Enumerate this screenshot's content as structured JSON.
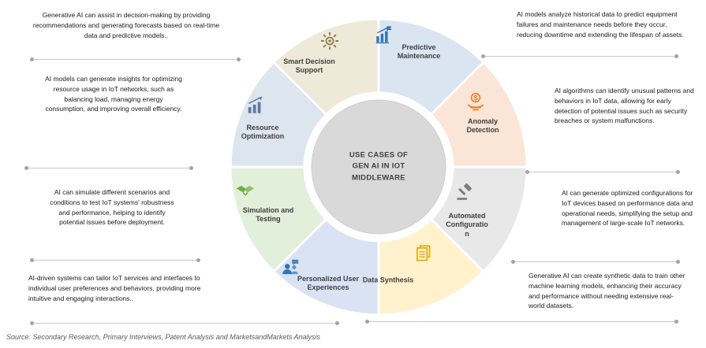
{
  "center": {
    "lines": [
      "USE CASES OF",
      "GEN AI IN IOT",
      "MIDDLEWARE"
    ]
  },
  "donut": {
    "center_fill": "#d9d9d9",
    "gap_color": "#ffffff"
  },
  "segments": [
    {
      "id": "predictive-maintenance",
      "label": "Predictive Maintenance",
      "color": "#dbe5f1",
      "accent": "#2e75b6",
      "icon": "bar-chart-flag-icon"
    },
    {
      "id": "anomaly-detection",
      "label": "Anomaly Detection",
      "color": "#fbe5d6",
      "accent": "#ed7d31",
      "icon": "coin-hand-icon"
    },
    {
      "id": "automated-configuration",
      "label": "Automated Configuration",
      "color": "#e8e8e8",
      "accent": "#7f7f7f",
      "icon": "gavel-icon"
    },
    {
      "id": "data-synthesis",
      "label": "Data Synthesis",
      "color": "#fff2cc",
      "accent": "#e3a800",
      "icon": "documents-icon"
    },
    {
      "id": "personalized-user-experiences",
      "label": "Personalized User Experiences",
      "color": "#dae3f3",
      "accent": "#2e75b6",
      "icon": "users-chat-icon"
    },
    {
      "id": "simulation-and-testing",
      "label": "Simulation and Testing",
      "color": "#e2efda",
      "accent": "#70ad47",
      "icon": "handshake-icon"
    },
    {
      "id": "resource-optimization",
      "label": "Resource Optimization",
      "color": "#dde5ee",
      "accent": "#5b7a9d",
      "icon": "growth-chart-icon"
    },
    {
      "id": "smart-decision-support",
      "label": "Smart Decision Support",
      "color": "#eee9d9",
      "accent": "#8c7a45",
      "icon": "gear-decision-icon"
    }
  ],
  "callouts": {
    "left": [
      "Generative AI can assist in decision-making by providing recommendations and generating forecasts based on real-time data and predictive models..",
      "AI models can generate insights for optimizing resource usage in IoT networks, such as balancing load, managing energy consumption, and improving overall efficiency.",
      "AI can simulate different scenarios and conditions to test IoT systems' robustness and performance, helping to identify potential issues before deployment.",
      "AI-driven systems can tailor IoT services and interfaces to individual user preferences and behaviors, providing more intuitive and engaging interactions.."
    ],
    "right": [
      "AI models analyze historical data to predict equipment failures and maintenance needs before they occur, reducing downtime and extending the lifespan of assets.",
      "AI algorithms can identify unusual patterns and behaviors in IoT data, allowing for early detection of potential issues such as security breaches or system malfunctions.",
      "AI can generate optimized configurations for IoT devices based on performance data and operational needs, simplifying the setup and management of large-scale IoT networks.",
      "Generative AI can create synthetic data to train other machine learning models, enhancing their accuracy and performance without needing extensive real-world datasets."
    ]
  },
  "source": "Source: Secondary Research, Primary Interviews, Patent Analysis and MarketsandMarkets Analysis"
}
